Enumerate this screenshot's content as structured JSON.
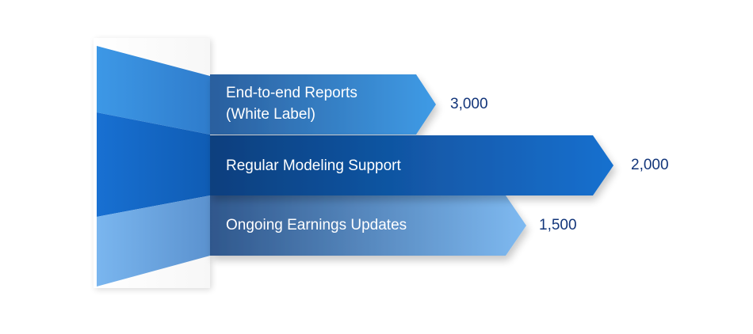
{
  "bands": [
    {
      "label": "End-to-end Reports\n(White Label)",
      "value": "3,000"
    },
    {
      "label": "Regular Modeling Support",
      "value": "2,000"
    },
    {
      "label": "Ongoing Earnings Updates",
      "value": "1,500"
    }
  ],
  "colors": {
    "band_top": "#3f95e2",
    "band_middle": "#1466c4",
    "band_bottom": "#78b4ee",
    "value_text": "#12357a",
    "label_text": "#ffffff"
  }
}
